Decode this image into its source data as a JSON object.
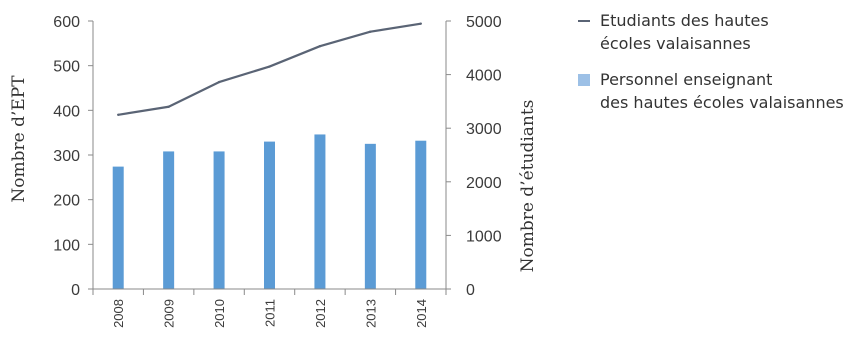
{
  "chart_data": {
    "type": "bar+line",
    "categories": [
      "2008",
      "2009",
      "2010",
      "2011",
      "2012",
      "2013",
      "2014"
    ],
    "series": [
      {
        "name": "Personnel enseignant des hautes écoles valaisannes",
        "type": "bar",
        "axis": "left",
        "color": "#5b9bd5",
        "values": [
          274,
          308,
          308,
          330,
          346,
          325,
          332
        ]
      },
      {
        "name": "Etudiants des hautes écoles valaisannes",
        "type": "line",
        "axis": "right",
        "color": "#5a6475",
        "values": [
          3250,
          3400,
          3860,
          4150,
          4530,
          4800,
          4950
        ]
      }
    ],
    "ylabel": "Nombre d’EPT",
    "y2label": "Nombre d’étudiants",
    "ylim": [
      0,
      600
    ],
    "y2lim": [
      0,
      5000
    ],
    "yticks": [
      "0",
      "100",
      "200",
      "300",
      "400",
      "500",
      "600"
    ],
    "y2ticks": [
      "0",
      "1000",
      "2000",
      "3000",
      "4000",
      "5000"
    ],
    "grid": false,
    "legend_position": "right"
  },
  "legend": {
    "line_label_1": "Etudiants des hautes",
    "line_label_2": "écoles valaisannes",
    "bar_label_1": "Personnel enseignant",
    "bar_label_2": "des hautes écoles valaisannes"
  }
}
